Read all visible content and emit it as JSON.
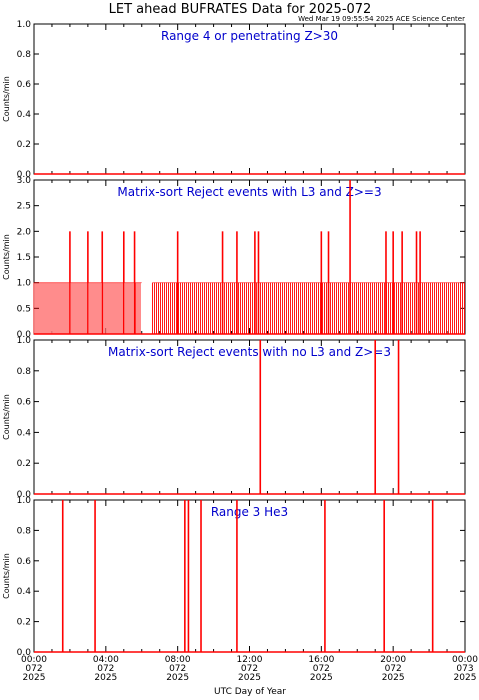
{
  "title": "LET ahead BUFRATES Data for 2025-072",
  "timestamp": "Wed Mar 19 09:55:54 2025 ACE Science Center",
  "colors": {
    "trace": "#ff0000",
    "panel_title": "#0000cc",
    "axis": "#000000",
    "background": "#ffffff"
  },
  "chart_data": [
    {
      "type": "line",
      "title": "Range 4 or   penetrating Z>30",
      "ylabel": "Counts/min",
      "ylim": [
        0,
        1
      ],
      "yticks": [
        "0.0",
        "0.2",
        "0.4",
        "0.6",
        "0.8",
        "1.0"
      ],
      "xlim": [
        0,
        24
      ],
      "baseline": 0,
      "spikes": []
    },
    {
      "type": "line",
      "title": "Matrix-sort Reject events with L3 and Z>=3",
      "ylabel": "Counts/min",
      "ylim": [
        0,
        3
      ],
      "yticks": [
        "0.0",
        "0.5",
        "1.0",
        "1.5",
        "2.0",
        "2.5",
        "3.0"
      ],
      "xlim": [
        0,
        24
      ],
      "baseline": 0,
      "dense_ones": [
        [
          0.0,
          6.0
        ],
        [
          6.6,
          24.0
        ]
      ],
      "spikes": [
        [
          2.0,
          2
        ],
        [
          3.0,
          2
        ],
        [
          3.8,
          2
        ],
        [
          5.0,
          2
        ],
        [
          5.6,
          2
        ],
        [
          8.0,
          2
        ],
        [
          10.5,
          2
        ],
        [
          11.3,
          2
        ],
        [
          12.3,
          2
        ],
        [
          12.5,
          2
        ],
        [
          16.0,
          2
        ],
        [
          16.4,
          2
        ],
        [
          17.6,
          3
        ],
        [
          19.6,
          2
        ],
        [
          20.0,
          2
        ],
        [
          20.5,
          2
        ],
        [
          21.3,
          2
        ],
        [
          21.5,
          2
        ]
      ]
    },
    {
      "type": "line",
      "title": "Matrix-sort Reject events with no L3 and Z>=3",
      "ylabel": "Counts/min",
      "ylim": [
        0,
        1
      ],
      "yticks": [
        "0.0",
        "0.2",
        "0.4",
        "0.6",
        "0.8",
        "1.0"
      ],
      "xlim": [
        0,
        24
      ],
      "baseline": 0,
      "spikes": [
        [
          12.6,
          1
        ],
        [
          19.0,
          1
        ],
        [
          20.3,
          1
        ]
      ]
    },
    {
      "type": "line",
      "title": "Range 3 He3",
      "ylabel": "Counts/min",
      "ylim": [
        0,
        1
      ],
      "yticks": [
        "0.0",
        "0.2",
        "0.4",
        "0.6",
        "0.8",
        "1.0"
      ],
      "xlim": [
        0,
        24
      ],
      "baseline": 0,
      "spikes": [
        [
          1.6,
          1
        ],
        [
          3.4,
          1
        ],
        [
          8.4,
          1
        ],
        [
          8.6,
          1
        ],
        [
          9.3,
          1
        ],
        [
          11.3,
          1
        ],
        [
          16.2,
          1
        ],
        [
          19.5,
          1
        ],
        [
          22.2,
          1
        ]
      ]
    }
  ],
  "xaxis": {
    "label": "UTC Day of Year",
    "ticks": [
      {
        "x": 0,
        "time": "00:00",
        "doy": "072",
        "year": "2025"
      },
      {
        "x": 4,
        "time": "04:00",
        "doy": "072",
        "year": "2025"
      },
      {
        "x": 8,
        "time": "08:00",
        "doy": "072",
        "year": "2025"
      },
      {
        "x": 12,
        "time": "12:00",
        "doy": "072",
        "year": "2025"
      },
      {
        "x": 16,
        "time": "16:00",
        "doy": "072",
        "year": "2025"
      },
      {
        "x": 20,
        "time": "20:00",
        "doy": "072",
        "year": "2025"
      },
      {
        "x": 24,
        "time": "00:00",
        "doy": "073",
        "year": "2025"
      }
    ]
  }
}
